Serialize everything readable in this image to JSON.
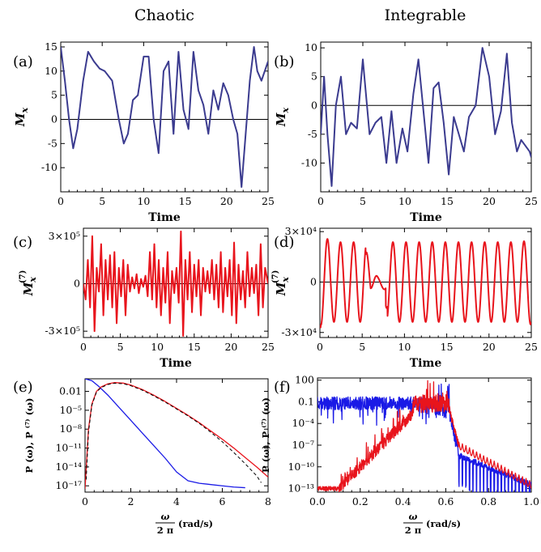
{
  "column_titles": [
    "Chaotic",
    "Integrable"
  ],
  "colors": {
    "purple": "#3b3b8f",
    "red": "#e8141c",
    "blue": "#1a1ae6",
    "black": "#000000"
  },
  "chart_data": [
    {
      "panel_label": "(a)",
      "type": "line",
      "xlabel": "Time",
      "ylabel": "M",
      "ylabel_sub": "x",
      "xlim": [
        0,
        25
      ],
      "ylim": [
        -15,
        16
      ],
      "xticks": [
        "0",
        "5",
        "10",
        "15",
        "20",
        "25"
      ],
      "yticks": [
        "-10",
        "-5",
        "0",
        "5",
        "10",
        "15"
      ],
      "ytick_values": [
        -10,
        -5,
        0,
        5,
        10,
        15
      ],
      "series": [
        {
          "color": "#3b3b8f",
          "x": [
            0,
            0.5,
            1,
            1.5,
            2,
            2.7,
            3.3,
            4,
            4.7,
            5.3,
            6.2,
            7,
            7.6,
            8.1,
            8.7,
            9.3,
            10,
            10.6,
            11.2,
            11.8,
            12.4,
            13,
            13.6,
            14.2,
            14.8,
            15.4,
            16,
            16.6,
            17.2,
            17.8,
            18.4,
            19,
            19.6,
            20.2,
            20.8,
            21.3,
            21.8,
            22.3,
            22.8,
            23.3,
            23.7,
            24.2,
            24.6,
            25
          ],
          "y": [
            15,
            8,
            0,
            -6,
            -2,
            8,
            14,
            12,
            10.5,
            10,
            8,
            0,
            -5,
            -3,
            4,
            5,
            13,
            13,
            0,
            -7,
            10,
            12,
            -3,
            14,
            2,
            -2,
            14,
            6,
            3,
            -3,
            6,
            2,
            7.5,
            5,
            0,
            -3,
            -14,
            -3,
            8,
            15,
            10,
            8,
            10,
            12
          ]
        }
      ]
    },
    {
      "panel_label": "(b)",
      "type": "line",
      "xlabel": "Time",
      "ylabel": "M",
      "ylabel_sub": "x",
      "xlim": [
        0,
        25
      ],
      "ylim": [
        -15,
        11
      ],
      "xticks": [
        "0",
        "5",
        "10",
        "15",
        "20",
        "25"
      ],
      "yticks": [
        "-10",
        "-5",
        "0",
        "5",
        "10"
      ],
      "ytick_values": [
        -10,
        -5,
        0,
        5,
        10
      ],
      "series": [
        {
          "color": "#3b3b8f",
          "x": [
            0,
            0.4,
            0.8,
            1.3,
            1.8,
            2.4,
            3,
            3.6,
            4.3,
            5,
            5.8,
            6.5,
            7.2,
            7.8,
            8.4,
            9,
            9.7,
            10.3,
            11,
            11.6,
            12.2,
            12.8,
            13.4,
            14,
            14.6,
            15.2,
            15.8,
            16.4,
            17,
            17.6,
            18.4,
            19.2,
            20,
            20.7,
            21.4,
            22.1,
            22.7,
            23.3,
            23.8,
            24.3,
            24.8,
            25
          ],
          "y": [
            -5,
            5,
            -5,
            -14,
            0,
            5,
            -5,
            -3,
            -4,
            8,
            -5,
            -3,
            -2,
            -10,
            -1,
            -10,
            -4,
            -8,
            2,
            8,
            -1,
            -10,
            3,
            4,
            -3,
            -12,
            -2,
            -5,
            -8,
            -2,
            0,
            10,
            5,
            -5,
            -1,
            9,
            -3,
            -8,
            -6,
            -7,
            -8,
            -9
          ]
        }
      ]
    },
    {
      "panel_label": "(c)",
      "type": "line",
      "xlabel": "Time",
      "ylabel": "M",
      "ylabel_sub": "x",
      "ylabel_sup": "(7)",
      "xlim": [
        0,
        25
      ],
      "ylim": [
        -340000,
        350000
      ],
      "xticks": [
        "0",
        "5",
        "10",
        "15",
        "20",
        "25"
      ],
      "yticks": [
        "-3×10⁵",
        "0",
        "3×10⁵"
      ],
      "ytick_values": [
        -300000,
        0,
        300000
      ],
      "series": [
        {
          "color": "#e8141c",
          "x": [
            0,
            0.3,
            0.6,
            0.9,
            1.2,
            1.5,
            1.8,
            2.1,
            2.4,
            2.7,
            3,
            3.3,
            3.6,
            3.9,
            4.2,
            4.5,
            4.8,
            5.1,
            5.4,
            5.7,
            6,
            6.3,
            6.6,
            6.9,
            7.2,
            7.5,
            7.8,
            8.1,
            8.4,
            8.7,
            9,
            9.3,
            9.6,
            9.9,
            10.2,
            10.5,
            10.8,
            11.1,
            11.4,
            11.7,
            12,
            12.3,
            12.6,
            12.9,
            13.2,
            13.5,
            13.8,
            14.1,
            14.4,
            14.7,
            15,
            15.3,
            15.6,
            15.9,
            16.2,
            16.5,
            16.8,
            17.1,
            17.4,
            17.7,
            18,
            18.3,
            18.6,
            18.9,
            19.2,
            19.5,
            19.8,
            20.1,
            20.4,
            20.7,
            21,
            21.3,
            21.6,
            21.9,
            22.2,
            22.5,
            22.8,
            23.1,
            23.4,
            23.7,
            24,
            24.3,
            24.6,
            25
          ],
          "y": [
            0,
            -100000,
            150000,
            -150000,
            300000,
            -300000,
            100000,
            -50000,
            250000,
            -200000,
            150000,
            -100000,
            180000,
            -150000,
            200000,
            -250000,
            100000,
            -80000,
            150000,
            -200000,
            120000,
            -50000,
            40000,
            -30000,
            60000,
            -60000,
            30000,
            -20000,
            50000,
            -80000,
            200000,
            -100000,
            250000,
            -150000,
            150000,
            -200000,
            100000,
            -120000,
            200000,
            -250000,
            80000,
            -60000,
            100000,
            -120000,
            330000,
            -330000,
            150000,
            -100000,
            200000,
            -180000,
            120000,
            -80000,
            150000,
            -200000,
            100000,
            -50000,
            80000,
            -60000,
            150000,
            -100000,
            120000,
            -150000,
            200000,
            -180000,
            100000,
            -80000,
            150000,
            -200000,
            260000,
            -250000,
            120000,
            -100000,
            80000,
            -150000,
            200000,
            -80000,
            100000,
            -60000,
            120000,
            -200000,
            250000,
            -150000,
            100000,
            0
          ]
        }
      ]
    },
    {
      "panel_label": "(d)",
      "type": "line",
      "xlabel": "Time",
      "ylabel": "M",
      "ylabel_sub": "x",
      "ylabel_sup": "(7)",
      "xlim": [
        0,
        25
      ],
      "ylim": [
        -33000,
        32000
      ],
      "xticks": [
        "0",
        "5",
        "10",
        "15",
        "20",
        "25"
      ],
      "yticks": [
        "-3×10⁴",
        "0",
        "3×10⁴"
      ],
      "ytick_values": [
        -30000,
        0,
        30000
      ]
    },
    {
      "panel_label": "(e)",
      "type": "line",
      "xlabel_frac_num": "ω",
      "xlabel_frac_den": "2 π",
      "xlabel_unit": "(rad/s)",
      "ylabel": "P (ω), P ⁽⁷⁾ (ω)",
      "xlim": [
        0,
        8
      ],
      "ylim_log10": [
        -18,
        0
      ],
      "xticks": [
        "0",
        "2",
        "4",
        "6",
        "8"
      ],
      "yticks": [
        "10⁻¹⁷",
        "10⁻¹⁴",
        "10⁻¹¹",
        "10⁻⁸",
        "10⁻⁵",
        "0.01"
      ],
      "ytick_log10": [
        -17,
        -14,
        -11,
        -8,
        -5,
        -2
      ],
      "series": [
        {
          "color": "#1a1ae6",
          "x": [
            0,
            0.3,
            0.6,
            1,
            1.5,
            2,
            2.5,
            3,
            3.5,
            4,
            4.5,
            5,
            5.5,
            6,
            6.5,
            7
          ],
          "y_log10": [
            0,
            -0.3,
            -1.2,
            -2.6,
            -4.6,
            -6.6,
            -8.6,
            -10.6,
            -12.6,
            -14.8,
            -16.2,
            -16.6,
            -16.8,
            -17,
            -17.2,
            -17.3
          ]
        },
        {
          "color": "#e8141c",
          "x": [
            0,
            0.15,
            0.3,
            0.5,
            0.7,
            1,
            1.3,
            1.7,
            2,
            2.5,
            3,
            3.5,
            4,
            4.5,
            5,
            5.5,
            6,
            6.5,
            7,
            7.5,
            8
          ],
          "y_log10": [
            -17.5,
            -8,
            -4,
            -2,
            -1.3,
            -0.8,
            -0.6,
            -0.7,
            -1,
            -1.7,
            -2.6,
            -3.6,
            -4.7,
            -5.8,
            -7,
            -8.3,
            -9.6,
            -11,
            -12.5,
            -14,
            -15.6
          ]
        },
        {
          "color": "#000000",
          "dashed": true,
          "x": [
            0.05,
            0.15,
            0.3,
            0.5,
            0.7,
            1,
            1.3,
            1.7,
            2,
            2.5,
            3,
            3.5,
            4,
            4.5,
            5,
            5.5,
            6,
            6.5,
            7,
            7.5,
            7.7
          ],
          "y_log10": [
            -16,
            -8.5,
            -4.2,
            -2.1,
            -1.4,
            -0.9,
            -0.7,
            -0.8,
            -1.1,
            -1.8,
            -2.7,
            -3.7,
            -4.8,
            -5.9,
            -7.1,
            -8.5,
            -10,
            -11.7,
            -13.5,
            -15.4,
            -16.5
          ]
        }
      ]
    },
    {
      "panel_label": "(f)",
      "type": "line",
      "xlabel_frac_num": "ω",
      "xlabel_frac_den": "2 π",
      "xlabel_unit": "(rad/s)",
      "ylabel": "P (ω), P ⁽⁷⁾ (ω)",
      "xlim": [
        0,
        1
      ],
      "ylim_log10": [
        -13.5,
        2.3
      ],
      "xticks": [
        "0.0",
        "0.2",
        "0.4",
        "0.6",
        "0.8",
        "1.0"
      ],
      "yticks": [
        "10⁻¹³",
        "10⁻¹⁰",
        "10⁻⁷",
        "10⁻⁴",
        "0.1",
        "100"
      ],
      "ytick_log10": [
        -13,
        -10,
        -7,
        -4,
        -1,
        2
      ]
    }
  ]
}
